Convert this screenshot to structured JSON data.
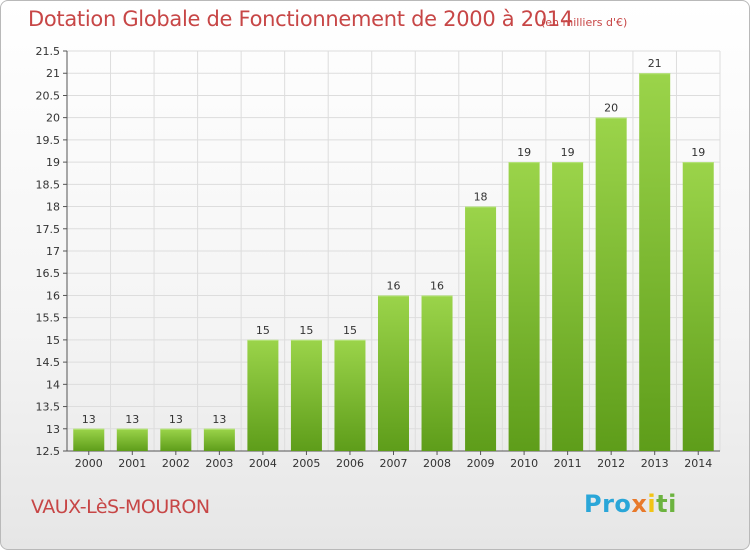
{
  "chart_data": {
    "type": "bar",
    "title": "Dotation Globale de Fonctionnement de 2000 à 2014",
    "subtitle": "(en milliers d'€)",
    "categories": [
      "2000",
      "2001",
      "2002",
      "2003",
      "2004",
      "2005",
      "2006",
      "2007",
      "2008",
      "2009",
      "2010",
      "2011",
      "2012",
      "2013",
      "2014"
    ],
    "values": [
      13,
      13,
      13,
      13,
      15,
      15,
      15,
      16,
      16,
      18,
      19,
      19,
      20,
      21,
      19
    ],
    "value_labels": [
      "13",
      "13",
      "13",
      "13",
      "15",
      "15",
      "15",
      "16",
      "16",
      "18",
      "19",
      "19",
      "20",
      "21",
      "19"
    ],
    "ylim": [
      12.5,
      21.5
    ],
    "yticks": [
      12.5,
      13,
      13.5,
      14,
      14.5,
      15,
      15.5,
      16,
      16.5,
      17,
      17.5,
      18,
      18.5,
      19,
      19.5,
      20,
      20.5,
      21,
      21.5
    ],
    "ytick_labels": [
      "12.5",
      "13",
      "13.5",
      "14",
      "14.5",
      "15",
      "15.5",
      "16",
      "16.5",
      "17",
      "17.5",
      "18",
      "18.5",
      "19",
      "19.5",
      "20",
      "20.5",
      "21",
      "21.5"
    ],
    "xlabel": "",
    "ylabel": "",
    "grid": true,
    "bar_color": "#7fbf30"
  },
  "commune": "VAUX-LèS-MOURON",
  "logo": {
    "p1": "Pro",
    "p2": "x",
    "p3": "i",
    "p4": "ti"
  }
}
